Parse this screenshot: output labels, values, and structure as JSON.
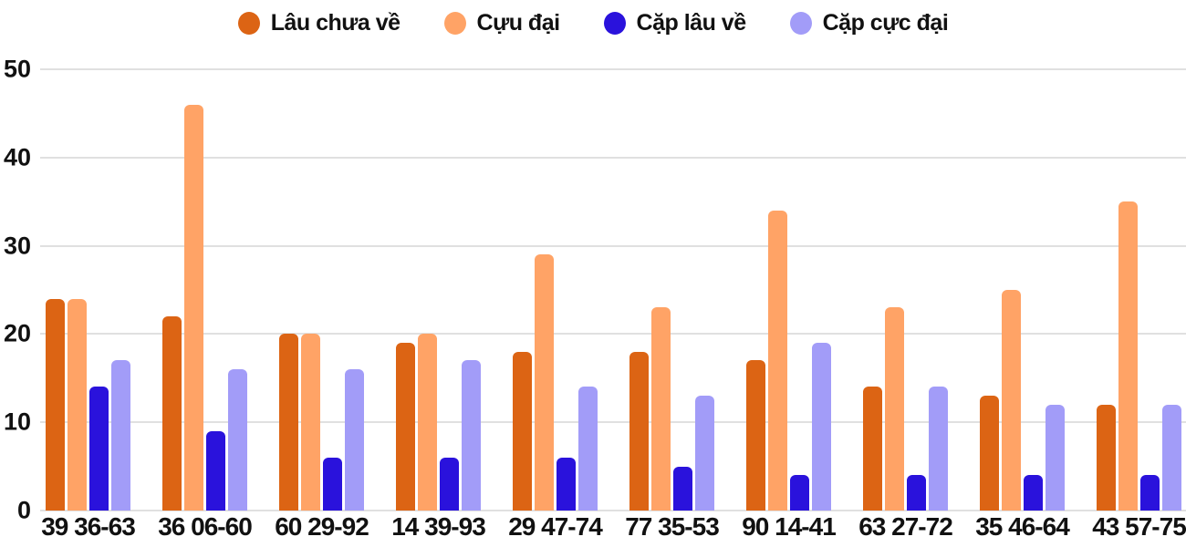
{
  "chart_data": {
    "type": "bar",
    "title": "",
    "categories": [
      "39 36-63",
      "36 06-60",
      "60 29-92",
      "14 39-93",
      "29 47-74",
      "77 35-53",
      "90 14-41",
      "63 27-72",
      "35 46-64",
      "43 57-75"
    ],
    "series": [
      {
        "name": "Lâu chưa về",
        "color": "#dc6414",
        "values": [
          24,
          22,
          20,
          19,
          18,
          18,
          17,
          14,
          13,
          12
        ]
      },
      {
        "name": "Cựu đại",
        "color": "#ffa366",
        "values": [
          24,
          46,
          20,
          20,
          29,
          23,
          34,
          23,
          25,
          35
        ]
      },
      {
        "name": "Cặp lâu về",
        "color": "#2a12dc",
        "values": [
          14,
          9,
          6,
          6,
          6,
          5,
          4,
          4,
          4,
          4
        ]
      },
      {
        "name": "Cặp cực đại",
        "color": "#a29cf8",
        "values": [
          17,
          16,
          16,
          17,
          14,
          13,
          19,
          14,
          12,
          12
        ]
      }
    ],
    "y_axis": {
      "min": 0,
      "max": 50,
      "ticks": [
        0,
        10,
        20,
        30,
        40,
        50
      ]
    },
    "grid": true,
    "legend_position": "top"
  },
  "colors": {
    "background": "#ffffff",
    "gridline": "#e0e0e0",
    "text": "#111111"
  }
}
